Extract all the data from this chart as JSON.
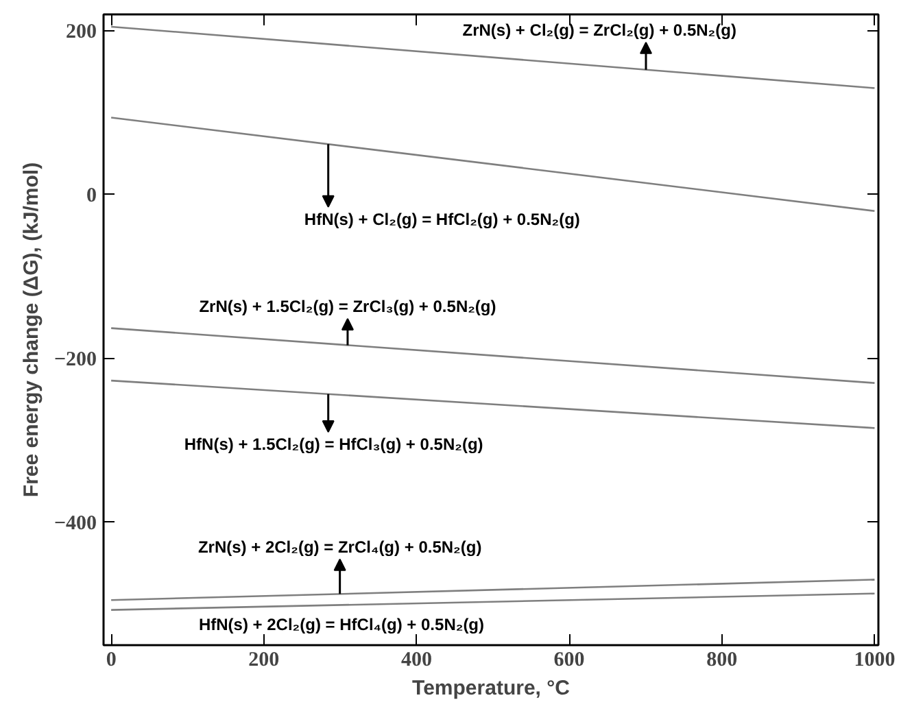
{
  "chart_data": {
    "type": "line",
    "xlabel": "Temperature, °C",
    "ylabel": "Free energy change (ΔG), (kJ/mol)",
    "x": [
      0,
      1000
    ],
    "series": [
      {
        "color": "#7f7f7f",
        "values": [
          205,
          130
        ]
      },
      {
        "color": "#7f7f7f",
        "values": [
          94,
          -20
        ]
      },
      {
        "color": "#7f7f7f",
        "values": [
          -163,
          -230
        ]
      },
      {
        "color": "#7f7f7f",
        "values": [
          -227,
          -285
        ]
      },
      {
        "color": "#7f7f7f",
        "values": [
          -495,
          -470
        ]
      },
      {
        "color": "#7f7f7f",
        "values": [
          -507,
          -487
        ]
      }
    ],
    "annotations": [
      "ZrN(s) + Cl₂(g) = ZrCl₂(g) + 0.5N₂(g)",
      "HfN(s) + Cl₂(g) =  HfCl₂(g) + 0.5N₂(g)",
      "ZrN(s) + 1.5Cl₂(g) = ZrCl₃(g) + 0.5N₂(g)",
      "HfN(s) + 1.5Cl₂(g) =  HfCl₃(g) + 0.5N₂(g)",
      "ZrN(s) + 2Cl₂(g) = ZrCl₄(g) + 0.5N₂(g)",
      "HfN(s) + 2Cl₂(g) =  HfCl₄(g) + 0.5N₂(g)"
    ],
    "xlim": [
      -10,
      1005
    ],
    "ylim": [
      -550,
      220
    ],
    "xticks": [
      0,
      200,
      400,
      600,
      800,
      1000
    ],
    "yticks": [
      -400,
      -200,
      0,
      200
    ],
    "grid": false,
    "marker": "none",
    "line_style": "solid"
  }
}
